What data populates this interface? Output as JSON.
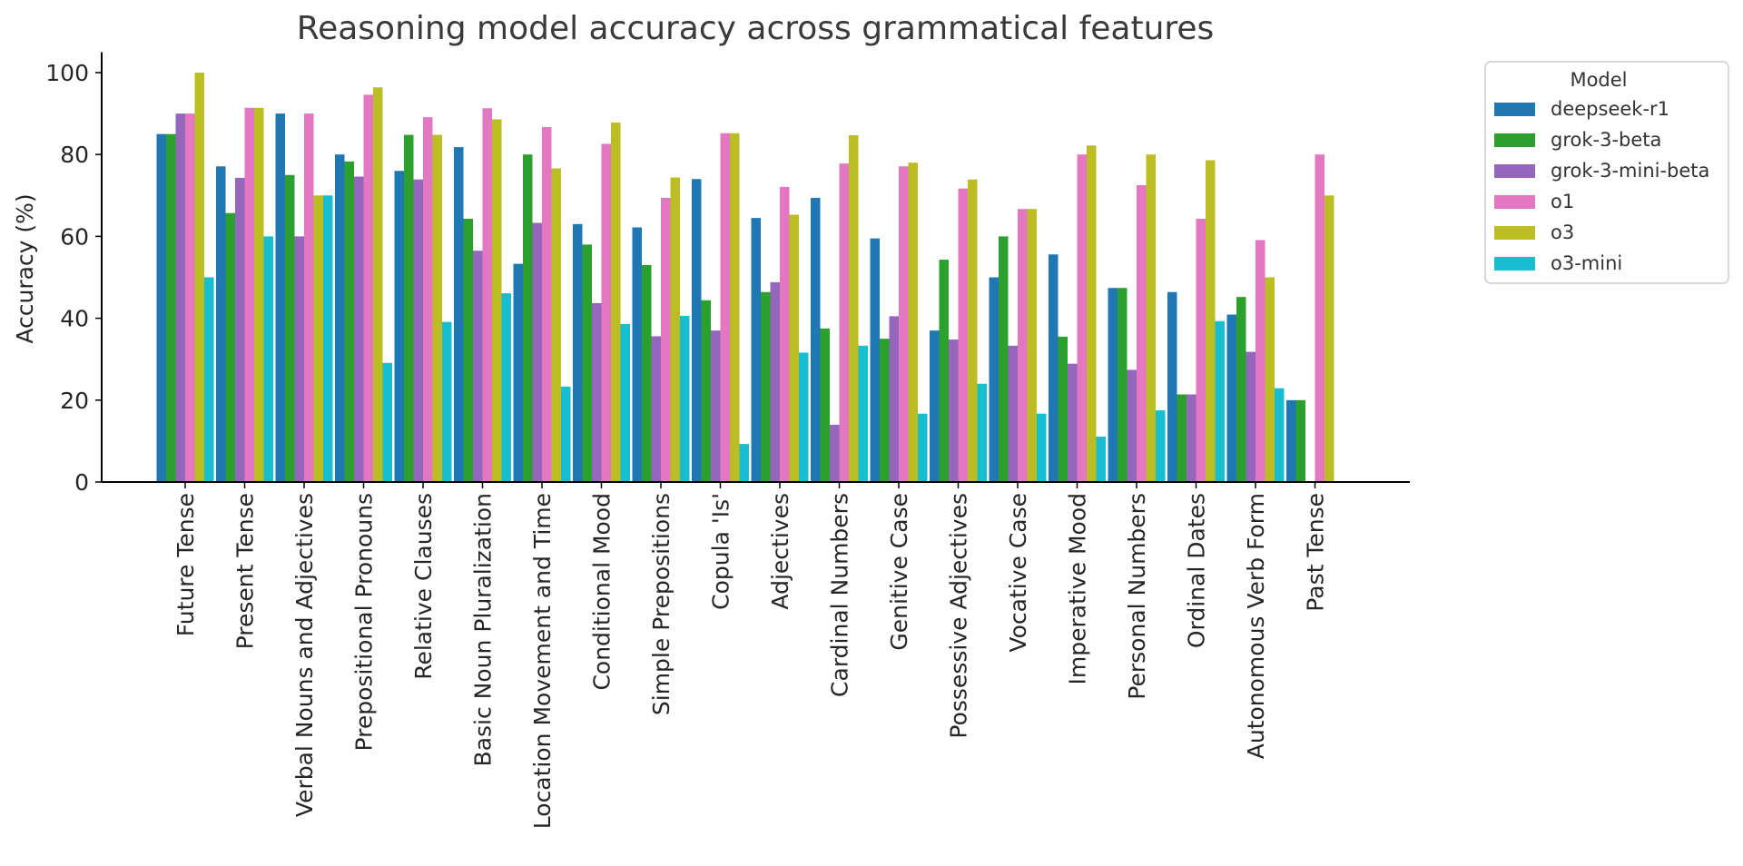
{
  "chart_data": {
    "type": "bar",
    "title": "Reasoning model accuracy across grammatical features",
    "xlabel": "",
    "ylabel": "Accuracy (%)",
    "ylim": [
      0,
      105
    ],
    "yticks": [
      0,
      20,
      40,
      60,
      80,
      100
    ],
    "grid": false,
    "legend_title": "Model",
    "legend_position": "outside top-right",
    "categories": [
      "Future Tense",
      "Present Tense",
      "Verbal Nouns and Adjectives",
      "Prepositional Pronouns",
      "Relative Clauses",
      "Basic Noun Pluralization",
      "Location Movement and Time",
      "Conditional Mood",
      "Simple Prepositions",
      "Copula 'Is'",
      "Adjectives",
      "Cardinal Numbers",
      "Genitive Case",
      "Possessive Adjectives",
      "Vocative Case",
      "Imperative Mood",
      "Personal Numbers",
      "Ordinal Dates",
      "Autonomous Verb Form",
      "Past Tense"
    ],
    "series": [
      {
        "name": "deepseek-r1",
        "color": "#1f77b4",
        "values": [
          85,
          77.1,
          90,
          80,
          76,
          81.8,
          53.3,
          63,
          62.2,
          74,
          64.5,
          69.4,
          59.5,
          37,
          50,
          55.6,
          47.4,
          46.4,
          40.9,
          20
        ]
      },
      {
        "name": "grok-3-beta",
        "color": "#2ca02c",
        "values": [
          85,
          65.7,
          75,
          78.3,
          84.8,
          64.3,
          80,
          58,
          53,
          44.4,
          46.4,
          37.5,
          35,
          54.3,
          60,
          35.5,
          47.4,
          21.4,
          45.2,
          20
        ]
      },
      {
        "name": "grok-3-mini-beta",
        "color": "#9467bd",
        "values": [
          90,
          74.3,
          60,
          74.6,
          73.9,
          56.5,
          63.3,
          43.7,
          35.6,
          37,
          48.8,
          14,
          40.5,
          34.8,
          33.3,
          28.9,
          27.4,
          21.4,
          31.8,
          0
        ]
      },
      {
        "name": "o1",
        "color": "#e377c2",
        "values": [
          90,
          91.4,
          90,
          94.6,
          89.1,
          91.3,
          86.7,
          82.6,
          69.4,
          85.2,
          72.1,
          77.8,
          77.1,
          71.7,
          66.7,
          80,
          72.5,
          64.3,
          59.1,
          80
        ]
      },
      {
        "name": "o3",
        "color": "#bcbd22",
        "values": [
          100,
          91.4,
          70,
          96.4,
          84.8,
          88.6,
          76.6,
          87.8,
          74.4,
          85.2,
          65.3,
          84.7,
          78,
          73.9,
          66.7,
          82.2,
          80,
          78.6,
          50,
          70
        ]
      },
      {
        "name": "o3-mini",
        "color": "#17becf",
        "values": [
          50,
          60,
          70,
          29.1,
          39.1,
          46.1,
          23.3,
          38.6,
          40.6,
          9.3,
          31.6,
          33.3,
          16.7,
          24,
          16.7,
          11.1,
          17.5,
          39.3,
          22.9,
          0
        ]
      }
    ]
  }
}
